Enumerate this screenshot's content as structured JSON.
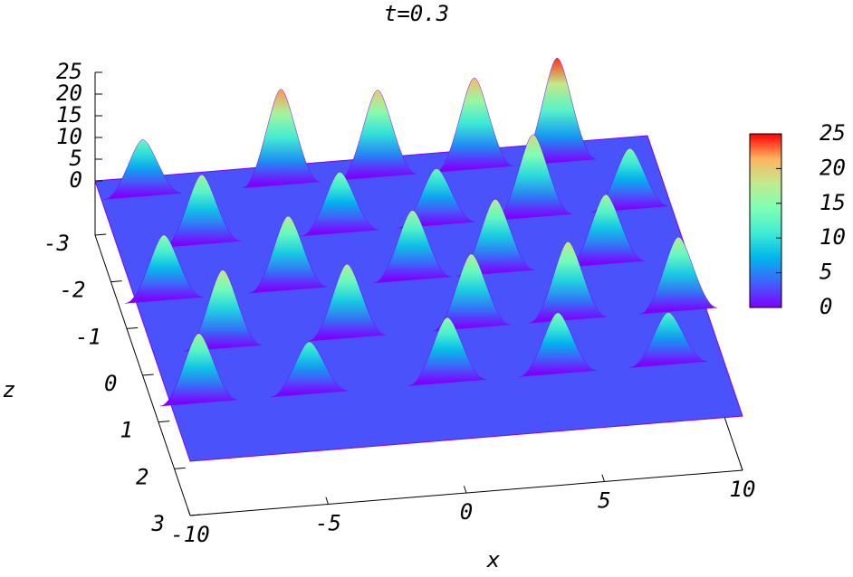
{
  "chart_data": {
    "type": "surface3d",
    "title": "t=0.3",
    "xlabel": "x",
    "zlabel": "z",
    "xlim": [
      -10,
      10
    ],
    "xticks": [
      -10,
      -5,
      0,
      5,
      10
    ],
    "zlim": [
      -3,
      3
    ],
    "zticks": [
      -3,
      -2,
      -1,
      0,
      1,
      2,
      3
    ],
    "vlim": [
      -12.5,
      25
    ],
    "vticks": [
      0,
      5,
      10,
      15,
      20,
      25
    ],
    "peaks": {
      "x": [
        -8.5,
        -3.5,
        0,
        3.5,
        6.5,
        -7,
        -2,
        1.5,
        5,
        8.5,
        -9,
        -4.5,
        0,
        3,
        7,
        -7.5,
        -3,
        1.5,
        5,
        9,
        -9,
        -5,
        0,
        4,
        8
      ],
      "z": [
        -2.6,
        -2.6,
        -2.6,
        -2.6,
        -2.6,
        -1.5,
        -1.5,
        -1.5,
        -1.5,
        -1.5,
        -0.4,
        -0.4,
        -0.4,
        -0.4,
        -0.4,
        0.7,
        0.7,
        0.7,
        0.7,
        0.7,
        1.8,
        1.8,
        1.8,
        1.8,
        1.8
      ],
      "values": [
        13,
        22,
        20,
        21,
        24,
        16,
        14,
        13,
        19,
        14,
        15,
        17,
        16,
        17,
        16,
        18,
        17,
        17,
        18,
        17,
        16,
        12,
        15,
        14,
        12
      ]
    },
    "colorbar": {
      "lim": [
        0,
        25
      ],
      "ticks": [
        0,
        5,
        10,
        15,
        20,
        25
      ],
      "colormap": [
        "#7f00ff",
        "#4062fa",
        "#00b5eb",
        "#40ecd4",
        "#80ffb4",
        "#c0eb8d",
        "#ffb360",
        "#ff0000"
      ]
    }
  }
}
